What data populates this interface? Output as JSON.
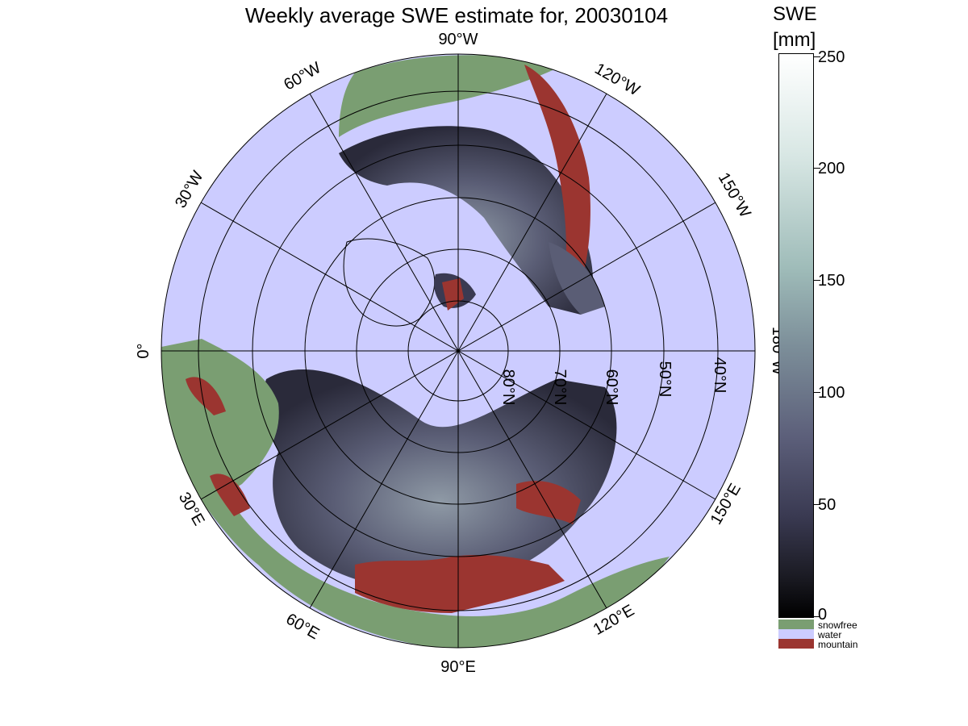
{
  "title": "Weekly average SWE estimate for, 20030104",
  "colorbar": {
    "title_line1": "SWE",
    "title_line2": "[mm]",
    "ticks": [
      "250",
      "200",
      "150",
      "100",
      "50",
      "0"
    ],
    "range": [
      0,
      250
    ],
    "colormap": "bone",
    "categories": [
      {
        "label": "snowfree",
        "color": "#7a9e72"
      },
      {
        "label": "water",
        "color": "#ccccff"
      },
      {
        "label": "mountain",
        "color": "#9b3530"
      }
    ]
  },
  "map": {
    "projection": "north polar stereographic",
    "ocean_color": "#ccccff",
    "longitude_labels": {
      "lon_90W": "90°W",
      "lon_120W": "120°W",
      "lon_150W": "150°W",
      "lon_180W": "180°W",
      "lon_150E": "150°E",
      "lon_120E": "120°E",
      "lon_90E": "90°E",
      "lon_60E": "60°E",
      "lon_30E": "30°E",
      "lon_0": "0°",
      "lon_30W": "30°W",
      "lon_60W": "60°W"
    },
    "latitude_labels": {
      "lat_80N": "80°N",
      "lat_70N": "70°N",
      "lat_60N": "60°N",
      "lat_50N": "50°N",
      "lat_40N": "40°N"
    }
  }
}
